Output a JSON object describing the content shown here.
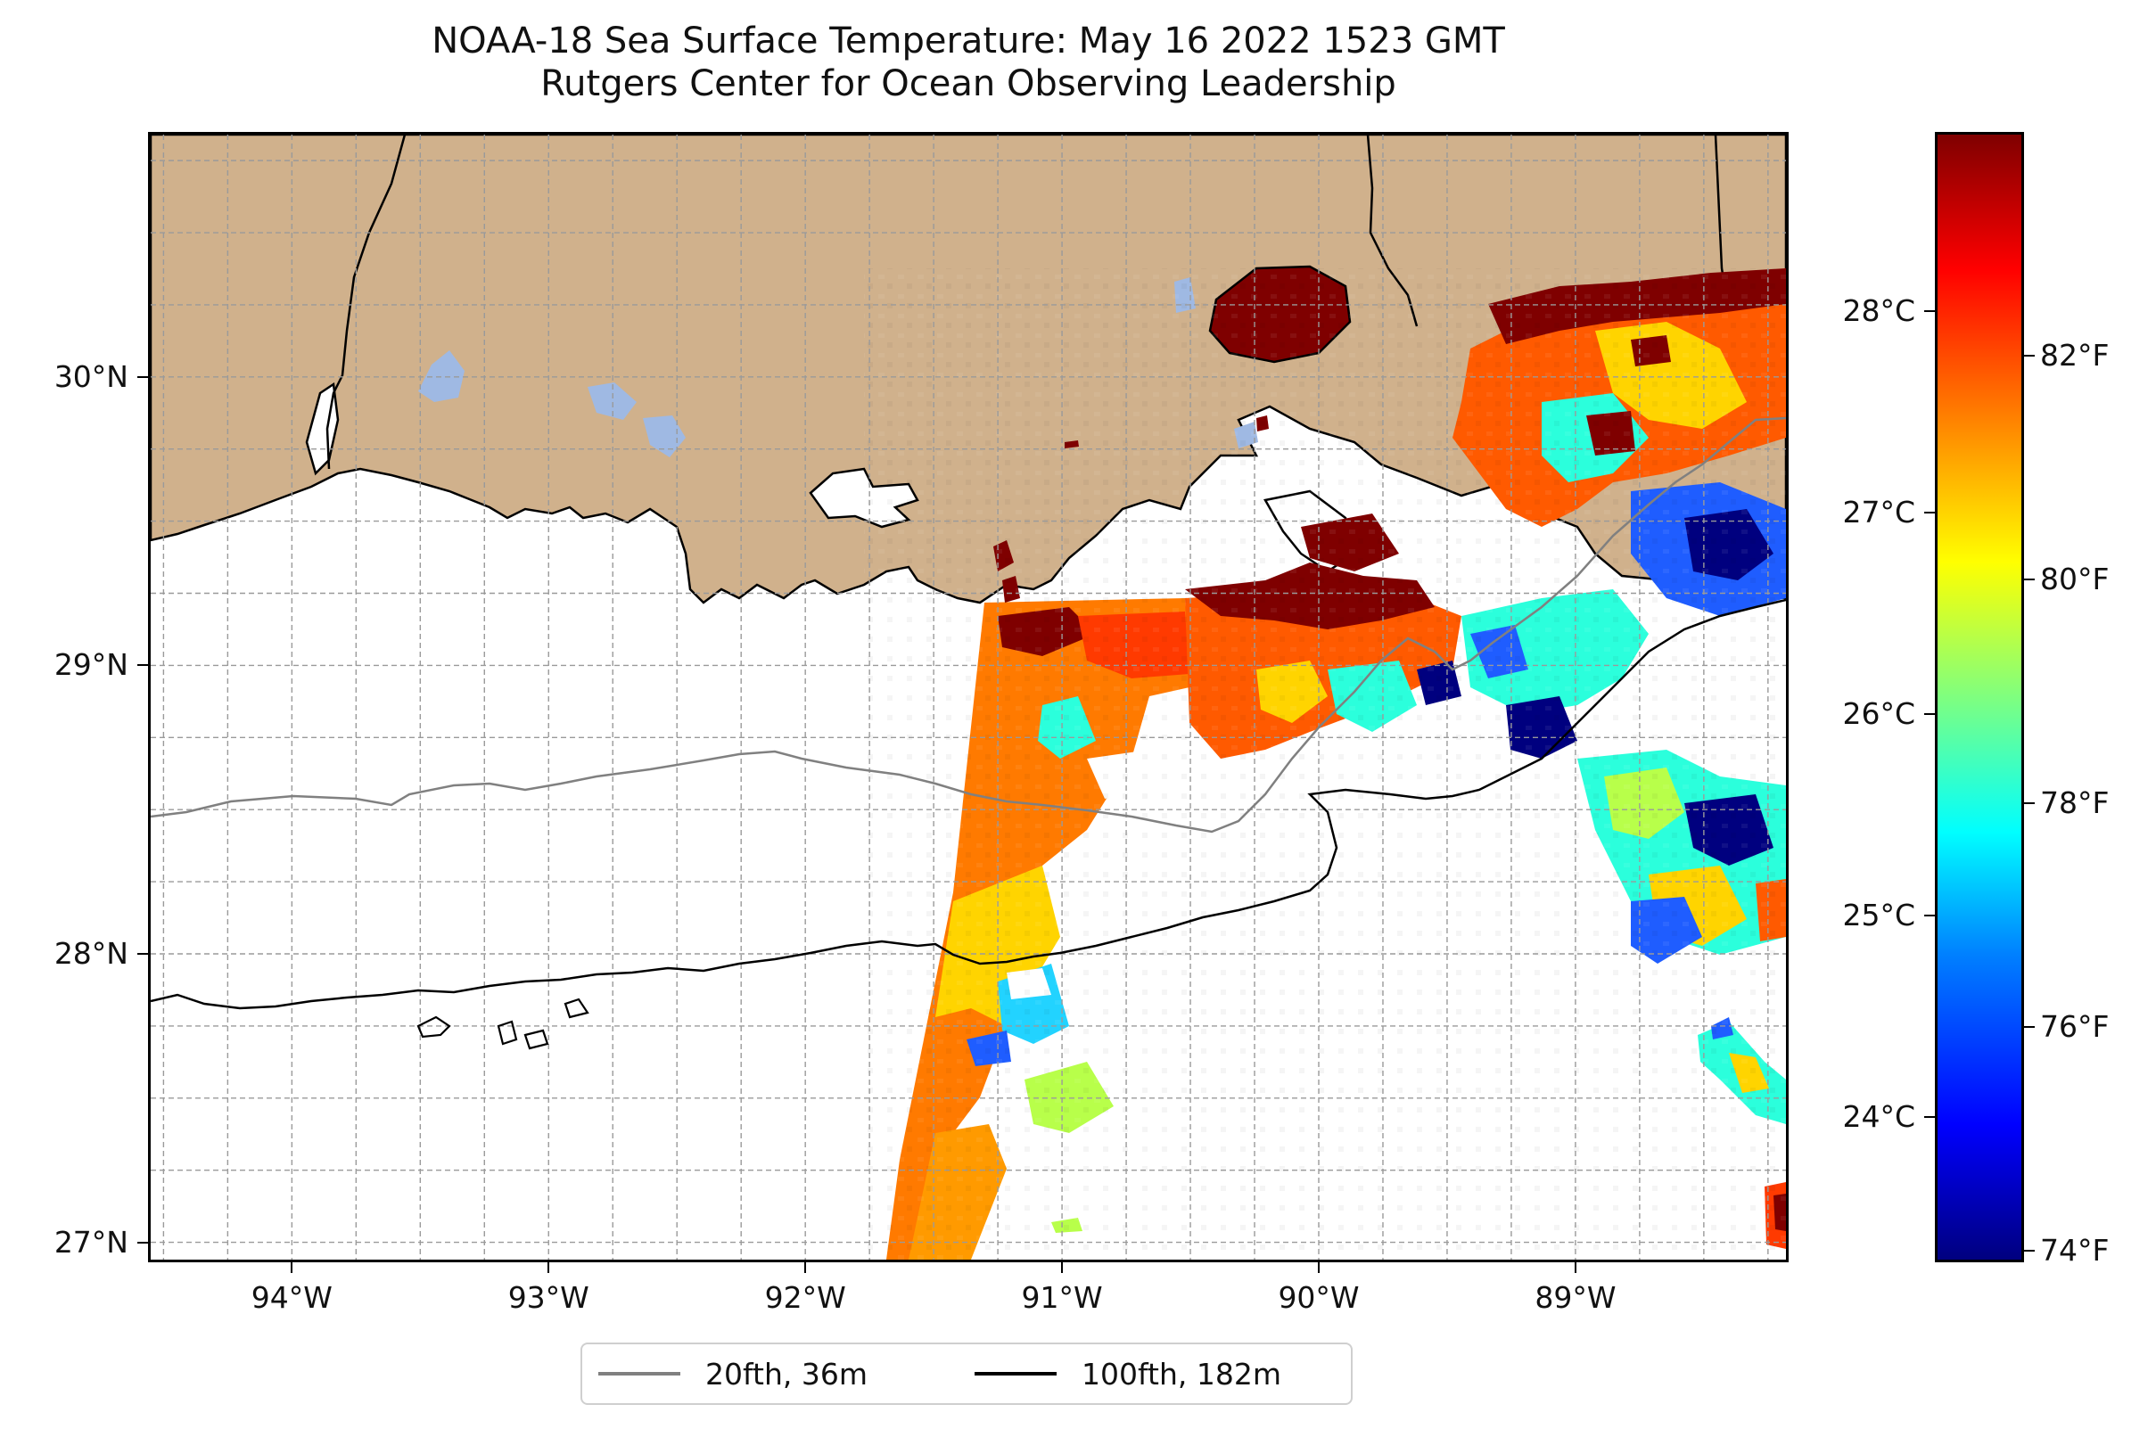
{
  "title": {
    "line1": "NOAA-18 Sea Surface Temperature: May 16 2022 1523 GMT",
    "line2": "Rutgers Center for Ocean Observing Leadership"
  },
  "map": {
    "extent": {
      "lon_min": -94.55,
      "lon_max": -88.18,
      "lat_min": 26.94,
      "lat_max": 30.84
    },
    "land_color": "#d0b18c",
    "water_body_color": "#9fb9e3",
    "lon_ticks": [
      {
        "value": -94,
        "label": "94°W"
      },
      {
        "value": -93,
        "label": "93°W"
      },
      {
        "value": -92,
        "label": "92°W"
      },
      {
        "value": -91,
        "label": "91°W"
      },
      {
        "value": -90,
        "label": "90°W"
      },
      {
        "value": -89,
        "label": "89°W"
      }
    ],
    "lat_ticks": [
      {
        "value": 30,
        "label": "30°N"
      },
      {
        "value": 29,
        "label": "29°N"
      },
      {
        "value": 28,
        "label": "28°N"
      },
      {
        "value": 27,
        "label": "27°N"
      }
    ],
    "grid": true,
    "grid_step_deg": 0.25
  },
  "legend": {
    "items": [
      {
        "label": "20fth, 36m",
        "color": "#808080"
      },
      {
        "label": "100fth, 182m",
        "color": "#000000"
      }
    ]
  },
  "colorbar": {
    "colormap": "jet",
    "celsius_ticks": [
      {
        "value": 24,
        "label": "24°C"
      },
      {
        "value": 25,
        "label": "25°C"
      },
      {
        "value": 26,
        "label": "26°C"
      },
      {
        "value": 27,
        "label": "27°C"
      },
      {
        "value": 28,
        "label": "28°C"
      }
    ],
    "fahrenheit_ticks": [
      {
        "value": 74,
        "label": "74°F"
      },
      {
        "value": 76,
        "label": "76°F"
      },
      {
        "value": 78,
        "label": "78°F"
      },
      {
        "value": 80,
        "label": "80°F"
      },
      {
        "value": 82,
        "label": "82°F"
      }
    ],
    "range_f": [
      73.9,
      84.0
    ]
  }
}
